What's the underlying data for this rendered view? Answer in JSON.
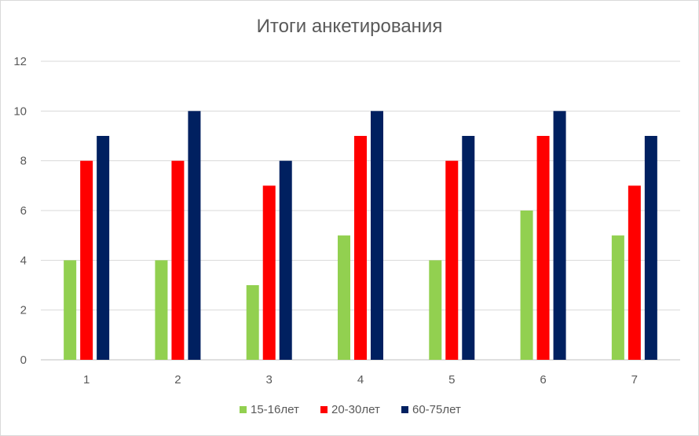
{
  "chart_data": {
    "type": "bar",
    "title": "Итоги анкетирования",
    "xlabel": "",
    "ylabel": "",
    "categories": [
      "1",
      "2",
      "3",
      "4",
      "5",
      "6",
      "7"
    ],
    "series": [
      {
        "name": "15-16лет",
        "color": "#92d050",
        "values": [
          4,
          4,
          3,
          5,
          4,
          6,
          5
        ]
      },
      {
        "name": "20-30лет",
        "color": "#ff0000",
        "values": [
          8,
          8,
          7,
          9,
          8,
          9,
          7
        ]
      },
      {
        "name": "60-75лет",
        "color": "#002060",
        "values": [
          9,
          10,
          8,
          10,
          9,
          10,
          9
        ]
      }
    ],
    "ylim": [
      0,
      12
    ],
    "yticks": [
      "0",
      "2",
      "4",
      "6",
      "8",
      "10",
      "12"
    ],
    "grid": true,
    "legend_position": "bottom"
  }
}
